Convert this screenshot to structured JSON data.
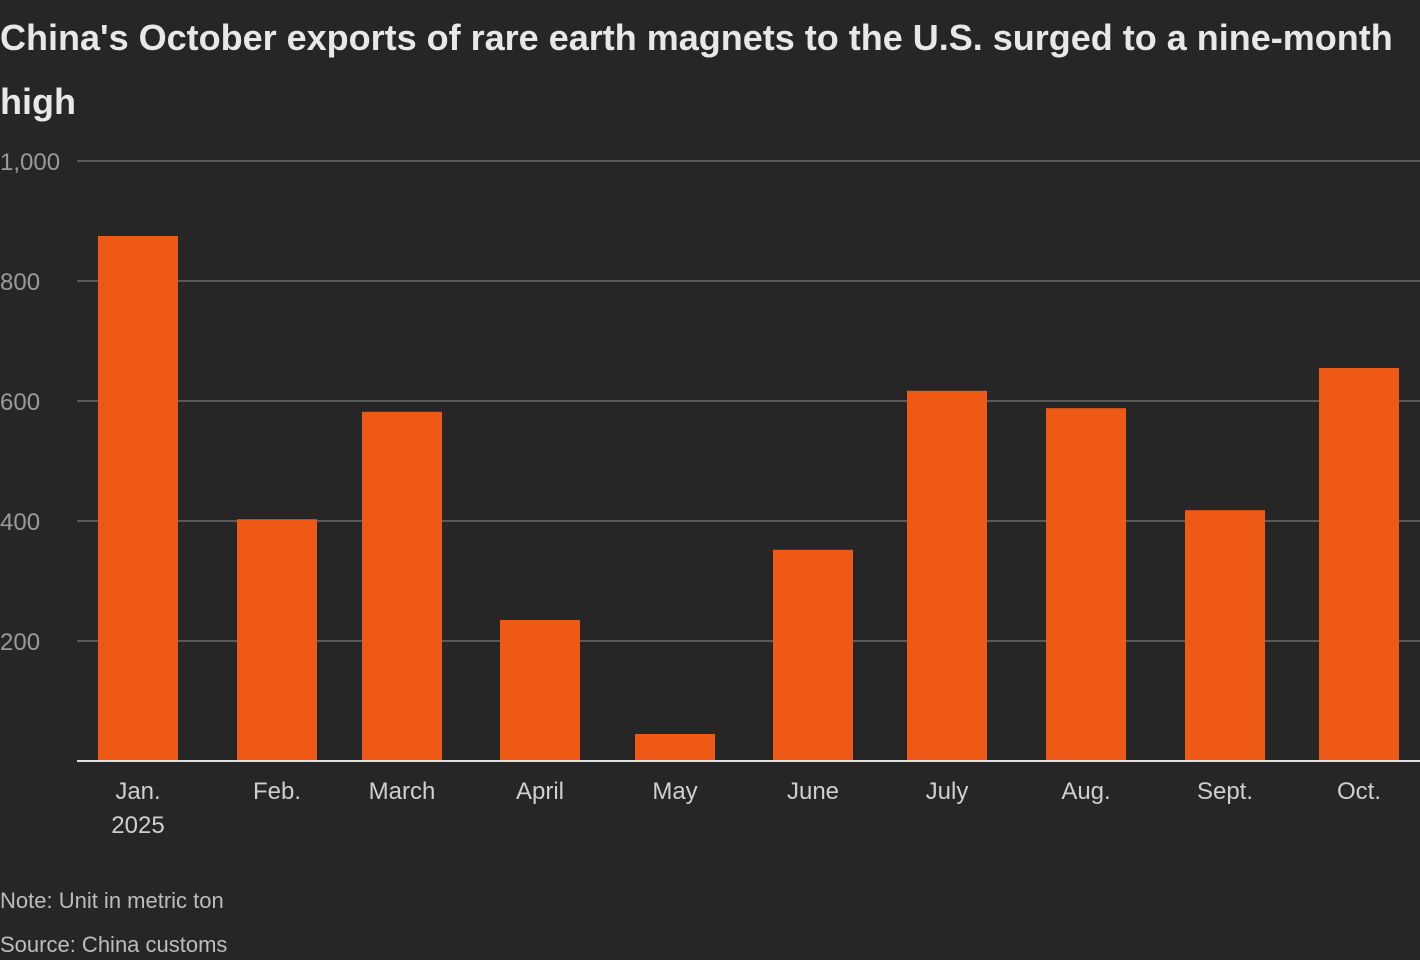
{
  "chart_data": {
    "type": "bar",
    "title": "China's October exports of rare earth magnets to the U.S. surged to a nine-month high",
    "categories": [
      "Jan.",
      "Feb.",
      "March",
      "April",
      "May",
      "June",
      "July",
      "Aug.",
      "Sept.",
      "Oct."
    ],
    "category_sublabels": [
      "2025",
      "",
      "",
      "",
      "",
      "",
      "",
      "",
      "",
      ""
    ],
    "values": [
      875,
      403,
      582,
      235,
      45,
      352,
      617,
      588,
      418,
      655
    ],
    "ylim": [
      0,
      1000
    ],
    "yticks": [
      200,
      400,
      600,
      800,
      1000
    ],
    "ytick_labels": [
      "200",
      "400",
      "600",
      "800",
      "1,000"
    ],
    "xlabel": "",
    "ylabel": "",
    "grid": true,
    "bar_color": "#ee5a16"
  },
  "note": "Note: Unit in metric ton",
  "source": "Source: China customs"
}
